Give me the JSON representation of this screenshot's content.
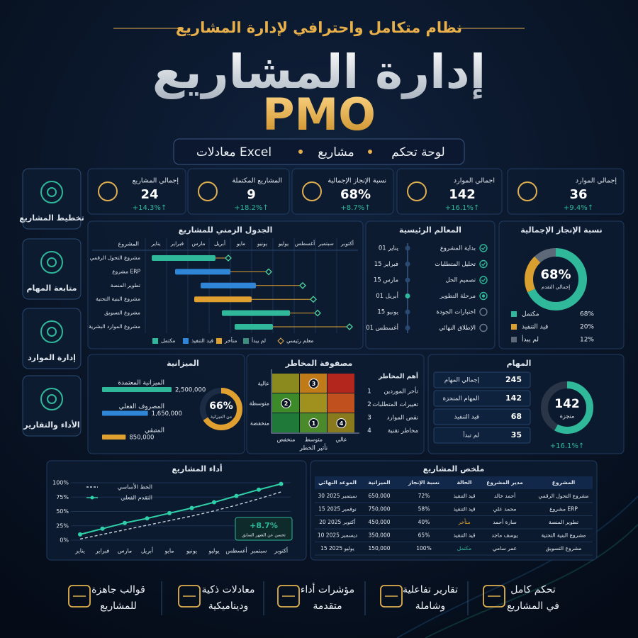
{
  "header": {
    "tagline": "نظام متكامل واحترافي لإدارة المشاريع",
    "title": "إدارة المشاريع",
    "brand": "PMO",
    "features": [
      "لوحة تحكم",
      "مشاريع",
      "معادلات Excel"
    ]
  },
  "sidebar": [
    "تخطيط المشاريع",
    "متابعة المهام",
    "إدارة الموارد",
    "الأداء والتقارير"
  ],
  "kpis": [
    {
      "label": "إجمالي الموارد",
      "value": "36",
      "change": "+9.4%↑"
    },
    {
      "label": "اجمالي الموارد",
      "value": "142",
      "change": "+16.1%↑"
    },
    {
      "label": "نسبة الإنجاز الإجمالية",
      "value": "68%",
      "change": "+8.7%↑"
    },
    {
      "label": "المشاريع المكتملة",
      "value": "9",
      "change": "+18.2%↑"
    },
    {
      "label": "إجمالي المشاريع",
      "value": "24",
      "change": "+14.3%↑"
    }
  ],
  "timeline": {
    "title": "الجدول الزمني للمشاريع",
    "column_header": "المشروع",
    "months": [
      "يناير",
      "فبراير",
      "مارس",
      "أبريل",
      "مايو",
      "يونيو",
      "يوليو",
      "أغسطس",
      "سبتمبر",
      "أكتوبر"
    ],
    "projects": [
      {
        "name": "مشروع التحول الرقمي",
        "start": 0.3,
        "end": 3.3,
        "milestone": 3.9,
        "color": "#2fb89a"
      },
      {
        "name": "مشروع ERP",
        "start": 1.4,
        "end": 4.0,
        "milestone": 5.8,
        "color": "#2f86d6"
      },
      {
        "name": "تطوير المنصة",
        "start": 2.6,
        "end": 5.2,
        "milestone": 7.4,
        "color": "#2f86d6"
      },
      {
        "name": "مشروع البنية التحتية",
        "start": 2.3,
        "end": 5.0,
        "milestone": 7.9,
        "color": "#e0a030"
      },
      {
        "name": "مشروع التسويق",
        "start": 3.6,
        "end": 6.8,
        "milestone": 8.1,
        "color": "#2fb89a"
      },
      {
        "name": "مشروع الموارد البشرية",
        "start": 4.2,
        "end": 6.0,
        "milestone": 9.6,
        "color": "#2fb89a"
      }
    ],
    "legend": [
      {
        "label": "مكتمل",
        "color": "#2fb89a"
      },
      {
        "label": "قيد التنفيذ",
        "color": "#2f86d6"
      },
      {
        "label": "متأخر",
        "color": "#e0a030"
      },
      {
        "label": "لم يبدأ",
        "color": "#3e8e7e"
      },
      {
        "label": "معلم رئيسي",
        "color": "#e8b04a"
      }
    ]
  },
  "milestones": {
    "title": "المعالم الرئيسية",
    "items": [
      {
        "label": "بداية المشروع",
        "date": "01 يناير",
        "status": "done"
      },
      {
        "label": "تحليل المتطلبات",
        "date": "15 فبراير",
        "status": "done"
      },
      {
        "label": "تصميم الحل",
        "date": "15 مارس",
        "status": "done"
      },
      {
        "label": "مرحلة التطوير",
        "date": "01 أبريل",
        "status": "current"
      },
      {
        "label": "اختبارات الجودة",
        "date": "15 يونيو",
        "status": "pending"
      },
      {
        "label": "الإطلاق النهائي",
        "date": "01 أغسطس",
        "status": "pending"
      }
    ]
  },
  "overall": {
    "title": "نسبة الإنجاز الإجمالية",
    "center_value": "68%",
    "center_label": "إجمالي التقدم",
    "segments": [
      {
        "label": "مكتمل",
        "value": 68,
        "value_label": "68%",
        "color": "#2fb89a"
      },
      {
        "label": "قيد التنفيذ",
        "value": 20,
        "value_label": "20%",
        "color": "#d9a030"
      },
      {
        "label": "لم يبدأ",
        "value": 12,
        "value_label": "12%",
        "color": "#5d6878"
      }
    ]
  },
  "budget": {
    "title": "الميزانية",
    "items": [
      {
        "label": "الميزانية المعتمدة",
        "value": 2500000,
        "value_label": "2,500,000",
        "color": "#2fb89a"
      },
      {
        "label": "المصروف الفعلي",
        "value": 1650000,
        "value_label": "1,650,000",
        "color": "#2f86d6"
      },
      {
        "label": "المتبقي",
        "value": 850000,
        "value_label": "850,000",
        "color": "#e0a030"
      }
    ],
    "gauge": {
      "value": 66,
      "label": "66%",
      "caption": "من الميزانية",
      "color": "#e0a030"
    }
  },
  "risks": {
    "title": "مصفوفة المخاطر",
    "probability_levels": [
      "عالية",
      "متوسطة",
      "منخفضة"
    ],
    "impact_levels": [
      "منخفض",
      "متوسط",
      "عالي"
    ],
    "impact_label": "تأثير الخطر",
    "points": [
      {
        "rank": 3,
        "impact": "متوسط",
        "probability": "عالية"
      },
      {
        "rank": 2,
        "impact": "منخفض",
        "probability": "متوسطة"
      },
      {
        "rank": 1,
        "impact": "متوسط",
        "probability": "منخفضة"
      },
      {
        "rank": 4,
        "impact": "عالي",
        "probability": "منخفضة"
      }
    ],
    "top_title": "أهم المخاطر",
    "top": [
      {
        "rank": 1,
        "label": "تأخر الموردين"
      },
      {
        "rank": 2,
        "label": "تغييرات المتطلبات"
      },
      {
        "rank": 3,
        "label": "نقص الموارد"
      },
      {
        "rank": 4,
        "label": "مخاطر تقنية"
      }
    ]
  },
  "tasks": {
    "title": "المهام",
    "rows": [
      {
        "label": "إجمالي المهام",
        "value": 245
      },
      {
        "label": "المهام المنجزة",
        "value": 142
      },
      {
        "label": "قيد التنفيذ",
        "value": 68
      },
      {
        "label": "لم تبدأ",
        "value": 35
      }
    ],
    "center_value": 142,
    "center_label": "منجزة",
    "change": "+16.1%↑"
  },
  "performance": {
    "title": "أداء المشاريع",
    "months": [
      "يناير",
      "فبراير",
      "مارس",
      "أبريل",
      "مايو",
      "يونيو",
      "يوليو",
      "أغسطس",
      "سبتمبر",
      "أكتوبر"
    ],
    "ylim": [
      0,
      100
    ],
    "yticks": [
      {
        "value": 0,
        "label": "0%"
      },
      {
        "value": 25,
        "label": "25%"
      },
      {
        "value": 50,
        "label": "50%"
      },
      {
        "value": 75,
        "label": "75%"
      },
      {
        "value": 100,
        "label": "100%"
      }
    ],
    "series": [
      {
        "name": "الخط الأساسي",
        "color": "#c9d2dc",
        "values": [
          2,
          10,
          18,
          26,
          34,
          42,
          51,
          61,
          72,
          84
        ]
      },
      {
        "name": "التقدم الفعلي",
        "color": "#2fd0a8",
        "values": [
          10,
          20,
          30,
          38,
          47,
          56,
          66,
          77,
          88,
          98
        ]
      }
    ],
    "annotation": {
      "value": "+8.7%",
      "caption": "تحسن عن الشهر السابق"
    }
  },
  "summary": {
    "title": "ملخص المشاريع",
    "headers": [
      "المشروع",
      "مدير المشروع",
      "الحالة",
      "نسبة الإنجاز",
      "الميزانية",
      "الموعد النهائي"
    ],
    "rows": [
      {
        "cells": [
          "مشروع التحول الرقمي",
          "أحمد خالد",
          "قيد التنفيذ",
          "72%",
          "650,000",
          "30 سبتمبر 2025"
        ],
        "status_color": "#dfe6ee"
      },
      {
        "cells": [
          "مشروع ERP",
          "محمد علي",
          "قيد التنفيذ",
          "58%",
          "750,000",
          "15 نوفمبر 2025"
        ],
        "status_color": "#dfe6ee"
      },
      {
        "cells": [
          "تطوير المنصة",
          "سارة أحمد",
          "متأخر",
          "40%",
          "450,000",
          "20 أكتوبر 2025"
        ],
        "status_color": "#e0a030"
      },
      {
        "cells": [
          "مشروع البنية التحتية",
          "يوسف ماجد",
          "قيد التنفيذ",
          "65%",
          "350,000",
          "10 ديسمبر 2025"
        ],
        "status_color": "#dfe6ee"
      },
      {
        "cells": [
          "مشروع التسويق",
          "عمر سامي",
          "مكتمل",
          "100%",
          "150,000",
          "15 يوليو 2025"
        ],
        "status_color": "#2fb89a"
      }
    ]
  },
  "footer": [
    [
      "تحكم كامل",
      "في المشاريع"
    ],
    [
      "تقارير تفاعلية",
      "وشاملة"
    ],
    [
      "مؤشرات أداء",
      "متقدمة"
    ],
    [
      "معادلات ذكية",
      "وديناميكية"
    ],
    [
      "قوالب جاهزة",
      "للمشاريع"
    ]
  ]
}
